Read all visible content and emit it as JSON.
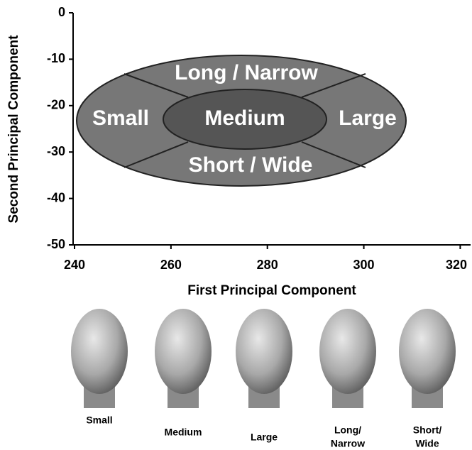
{
  "chart_data": {
    "type": "regions",
    "xlabel": "First Principal Component",
    "ylabel": "Second Principal Component",
    "xlim": [
      240,
      322
    ],
    "ylim": [
      -50,
      0
    ],
    "xticks": [
      240,
      260,
      280,
      300,
      320
    ],
    "yticks": [
      0,
      -10,
      -20,
      -30,
      -40,
      -50
    ],
    "regions": [
      "Long / Narrow",
      "Small",
      "Medium",
      "Large",
      "Short / Wide"
    ]
  },
  "faces": [
    {
      "caption": [
        "Small"
      ]
    },
    {
      "caption": [
        "Medium"
      ]
    },
    {
      "caption": [
        "Large"
      ]
    },
    {
      "caption": [
        "Long/",
        "Narrow"
      ]
    },
    {
      "caption": [
        "Short/",
        "Wide"
      ]
    }
  ]
}
